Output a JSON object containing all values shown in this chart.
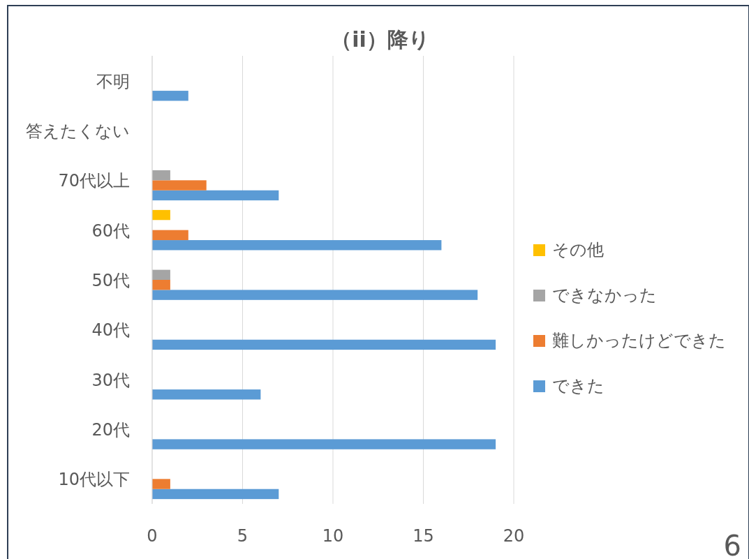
{
  "chart_data": {
    "type": "bar",
    "orientation": "horizontal",
    "title": "（ii）降り",
    "categories": [
      "不明",
      "答えたくない",
      "70代以上",
      "60代",
      "50代",
      "40代",
      "30代",
      "20代",
      "10代以下"
    ],
    "series": [
      {
        "name": "できた",
        "color": "#5b9bd5",
        "values": [
          2,
          null,
          7,
          16,
          18,
          19,
          6,
          19,
          7
        ]
      },
      {
        "name": "難しかったけどできた",
        "color": "#ed7d31",
        "values": [
          null,
          null,
          3,
          2,
          1,
          null,
          null,
          null,
          1
        ]
      },
      {
        "name": "できなかった",
        "color": "#a5a5a5",
        "values": [
          null,
          null,
          1,
          null,
          1,
          null,
          null,
          null,
          null
        ]
      },
      {
        "name": "その他",
        "color": "#ffc000",
        "values": [
          null,
          null,
          null,
          1,
          null,
          null,
          null,
          null,
          null
        ]
      }
    ],
    "xlim": [
      0,
      20
    ],
    "xticks": [
      0,
      5,
      10,
      15,
      20
    ],
    "grid": "x",
    "legend": "right",
    "annotations": [
      "6"
    ]
  }
}
